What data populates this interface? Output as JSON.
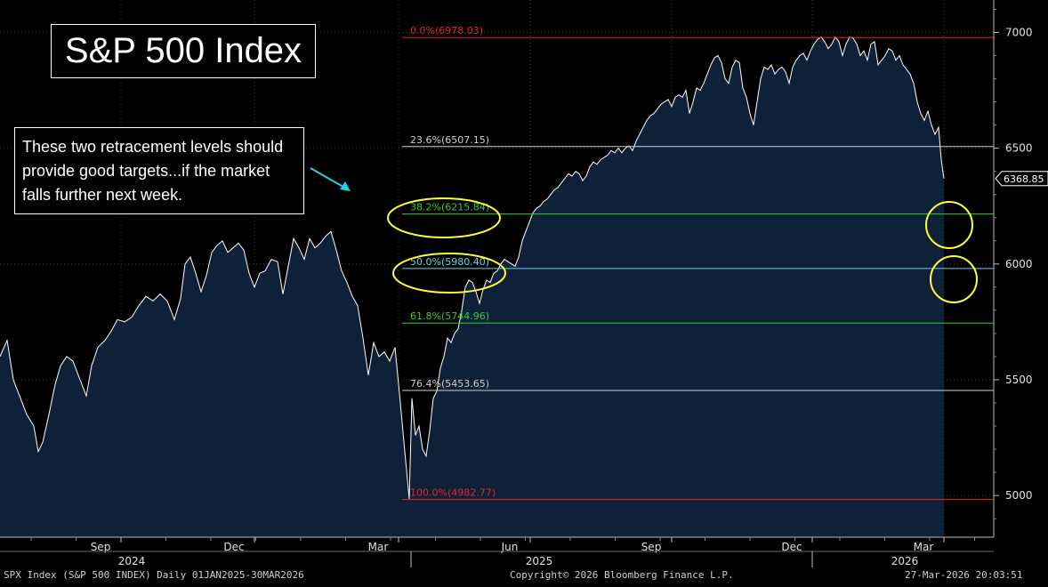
{
  "title": "S&P 500 Index",
  "annotation": "These two retracement levels should\nprovide good targets...if the market\nfalls further next week.",
  "price_label": "6368.85",
  "footer": {
    "left": "SPX Index (S&P 500 INDEX) Daily 01JAN2025-30MAR2026",
    "center": "Copyright© 2026 Bloomberg Finance L.P.",
    "right": "27-Mar-2026 20:03:51"
  },
  "colors": {
    "background": "#000000",
    "area_fill": "#0f2138",
    "line": "#ffffff",
    "fib_red": "#e0242c",
    "fib_white": "#cfcfcf",
    "fib_green": "#33cc33",
    "fib_cyan": "#5fd7e8",
    "highlight_circle": "#ffff33",
    "arrow": "#22d3e6"
  },
  "chart_data": {
    "type": "area",
    "title": "S&P 500 Index",
    "ylim": [
      4820,
      7140
    ],
    "y_ticks": [
      5000,
      5500,
      6000,
      6500,
      7000
    ],
    "x_tick_labels": [
      "Sep",
      "Dec",
      "Mar",
      "Jun",
      "Sep",
      "Dec",
      "Mar"
    ],
    "year_labels": [
      "2024",
      "2025",
      "2026"
    ],
    "last_value": 6368.85,
    "fib_levels": [
      {
        "label": "0.0%(6978.03)",
        "value": 6978.03,
        "color": "#e0242c"
      },
      {
        "label": "23.6%(6507.15)",
        "value": 6507.15,
        "color": "#cfcfcf"
      },
      {
        "label": "38.2%(6215.84)",
        "value": 6215.84,
        "color": "#33cc33"
      },
      {
        "label": "50.0%(5980.40)",
        "value": 5980.4,
        "color": "#5fd7e8"
      },
      {
        "label": "61.8%(5744.96)",
        "value": 5744.96,
        "color": "#33cc33"
      },
      {
        "label": "76.4%(5453.65)",
        "value": 5453.65,
        "color": "#cfcfcf"
      },
      {
        "label": "100.0%(4982.77)",
        "value": 4982.77,
        "color": "#e0242c"
      }
    ],
    "series": [
      {
        "points": [
          [
            0,
            5600
          ],
          [
            8,
            5670
          ],
          [
            15,
            5500
          ],
          [
            22,
            5430
          ],
          [
            30,
            5350
          ],
          [
            38,
            5300
          ],
          [
            43,
            5190
          ],
          [
            48,
            5230
          ],
          [
            55,
            5350
          ],
          [
            62,
            5480
          ],
          [
            68,
            5560
          ],
          [
            75,
            5600
          ],
          [
            82,
            5580
          ],
          [
            90,
            5500
          ],
          [
            97,
            5430
          ],
          [
            103,
            5560
          ],
          [
            110,
            5640
          ],
          [
            118,
            5670
          ],
          [
            125,
            5710
          ],
          [
            132,
            5760
          ],
          [
            140,
            5750
          ],
          [
            148,
            5770
          ],
          [
            156,
            5820
          ],
          [
            164,
            5860
          ],
          [
            172,
            5840
          ],
          [
            180,
            5870
          ],
          [
            188,
            5840
          ],
          [
            196,
            5760
          ],
          [
            203,
            5850
          ],
          [
            208,
            6000
          ],
          [
            214,
            6030
          ],
          [
            220,
            5960
          ],
          [
            226,
            5880
          ],
          [
            232,
            5950
          ],
          [
            238,
            6050
          ],
          [
            244,
            6080
          ],
          [
            250,
            6100
          ],
          [
            256,
            6050
          ],
          [
            262,
            6070
          ],
          [
            268,
            6090
          ],
          [
            274,
            6060
          ],
          [
            280,
            5960
          ],
          [
            286,
            5900
          ],
          [
            292,
            5960
          ],
          [
            298,
            5970
          ],
          [
            305,
            6020
          ],
          [
            312,
            6010
          ],
          [
            318,
            5870
          ],
          [
            324,
            5990
          ],
          [
            330,
            6110
          ],
          [
            336,
            6070
          ],
          [
            342,
            6020
          ],
          [
            348,
            6110
          ],
          [
            354,
            6070
          ],
          [
            360,
            6090
          ],
          [
            366,
            6120
          ],
          [
            372,
            6140
          ],
          [
            378,
            6060
          ],
          [
            384,
            5970
          ],
          [
            390,
            5920
          ],
          [
            396,
            5860
          ],
          [
            402,
            5820
          ],
          [
            408,
            5680
          ],
          [
            414,
            5520
          ],
          [
            420,
            5660
          ],
          [
            426,
            5600
          ],
          [
            432,
            5620
          ],
          [
            438,
            5580
          ],
          [
            444,
            5640
          ],
          [
            450,
            5400
          ],
          [
            455,
            5190
          ],
          [
            460,
            4985
          ],
          [
            463,
            5420
          ],
          [
            467,
            5260
          ],
          [
            471,
            5300
          ],
          [
            475,
            5200
          ],
          [
            479,
            5170
          ],
          [
            483,
            5280
          ],
          [
            487,
            5420
          ],
          [
            491,
            5450
          ],
          [
            495,
            5550
          ],
          [
            499,
            5600
          ],
          [
            503,
            5680
          ],
          [
            507,
            5660
          ],
          [
            511,
            5700
          ],
          [
            515,
            5720
          ],
          [
            519,
            5800
          ],
          [
            523,
            5900
          ],
          [
            527,
            5930
          ],
          [
            531,
            5920
          ],
          [
            535,
            5880
          ],
          [
            539,
            5830
          ],
          [
            543,
            5890
          ],
          [
            547,
            5930
          ],
          [
            551,
            5920
          ],
          [
            555,
            5960
          ],
          [
            559,
            5970
          ],
          [
            563,
            6000
          ],
          [
            567,
            6020
          ],
          [
            571,
            6010
          ],
          [
            575,
            6000
          ],
          [
            579,
            5990
          ],
          [
            583,
            6030
          ],
          [
            587,
            6100
          ],
          [
            591,
            6140
          ],
          [
            595,
            6180
          ],
          [
            599,
            6220
          ],
          [
            603,
            6240
          ],
          [
            607,
            6250
          ],
          [
            611,
            6270
          ],
          [
            615,
            6280
          ],
          [
            619,
            6300
          ],
          [
            623,
            6320
          ],
          [
            627,
            6330
          ],
          [
            631,
            6350
          ],
          [
            635,
            6370
          ],
          [
            639,
            6390
          ],
          [
            643,
            6380
          ],
          [
            647,
            6400
          ],
          [
            651,
            6390
          ],
          [
            655,
            6360
          ],
          [
            659,
            6380
          ],
          [
            663,
            6420
          ],
          [
            667,
            6440
          ],
          [
            671,
            6430
          ],
          [
            675,
            6450
          ],
          [
            679,
            6460
          ],
          [
            683,
            6470
          ],
          [
            687,
            6490
          ],
          [
            691,
            6480
          ],
          [
            695,
            6500
          ],
          [
            699,
            6480
          ],
          [
            703,
            6500
          ],
          [
            707,
            6510
          ],
          [
            711,
            6490
          ],
          [
            715,
            6530
          ],
          [
            719,
            6560
          ],
          [
            723,
            6590
          ],
          [
            727,
            6620
          ],
          [
            731,
            6640
          ],
          [
            735,
            6650
          ],
          [
            739,
            6670
          ],
          [
            743,
            6690
          ],
          [
            747,
            6700
          ],
          [
            751,
            6710
          ],
          [
            755,
            6680
          ],
          [
            759,
            6720
          ],
          [
            763,
            6730
          ],
          [
            767,
            6720
          ],
          [
            771,
            6750
          ],
          [
            775,
            6650
          ],
          [
            779,
            6700
          ],
          [
            783,
            6760
          ],
          [
            787,
            6750
          ],
          [
            791,
            6780
          ],
          [
            795,
            6820
          ],
          [
            799,
            6860
          ],
          [
            803,
            6890
          ],
          [
            807,
            6900
          ],
          [
            811,
            6870
          ],
          [
            815,
            6800
          ],
          [
            819,
            6780
          ],
          [
            823,
            6850
          ],
          [
            827,
            6880
          ],
          [
            831,
            6870
          ],
          [
            835,
            6760
          ],
          [
            839,
            6720
          ],
          [
            843,
            6650
          ],
          [
            847,
            6600
          ],
          [
            851,
            6700
          ],
          [
            855,
            6800
          ],
          [
            859,
            6850
          ],
          [
            863,
            6840
          ],
          [
            867,
            6860
          ],
          [
            871,
            6820
          ],
          [
            875,
            6840
          ],
          [
            879,
            6850
          ],
          [
            883,
            6830
          ],
          [
            887,
            6780
          ],
          [
            891,
            6850
          ],
          [
            895,
            6880
          ],
          [
            899,
            6900
          ],
          [
            903,
            6910
          ],
          [
            907,
            6880
          ],
          [
            911,
            6920
          ],
          [
            915,
            6950
          ],
          [
            919,
            6970
          ],
          [
            923,
            6980
          ],
          [
            927,
            6960
          ],
          [
            931,
            6930
          ],
          [
            935,
            6950
          ],
          [
            939,
            6980
          ],
          [
            943,
            6960
          ],
          [
            947,
            6900
          ],
          [
            951,
            6950
          ],
          [
            955,
            6980
          ],
          [
            959,
            6975
          ],
          [
            963,
            6950
          ],
          [
            967,
            6900
          ],
          [
            971,
            6920
          ],
          [
            975,
            6880
          ],
          [
            979,
            6950
          ],
          [
            983,
            6960
          ],
          [
            987,
            6860
          ],
          [
            991,
            6880
          ],
          [
            995,
            6900
          ],
          [
            999,
            6930
          ],
          [
            1003,
            6920
          ],
          [
            1007,
            6880
          ],
          [
            1011,
            6900
          ],
          [
            1015,
            6860
          ],
          [
            1019,
            6840
          ],
          [
            1023,
            6820
          ],
          [
            1027,
            6780
          ],
          [
            1031,
            6700
          ],
          [
            1035,
            6650
          ],
          [
            1039,
            6620
          ],
          [
            1043,
            6660
          ],
          [
            1047,
            6600
          ],
          [
            1051,
            6560
          ],
          [
            1055,
            6590
          ],
          [
            1058,
            6450
          ],
          [
            1061,
            6368.85
          ]
        ]
      }
    ]
  }
}
